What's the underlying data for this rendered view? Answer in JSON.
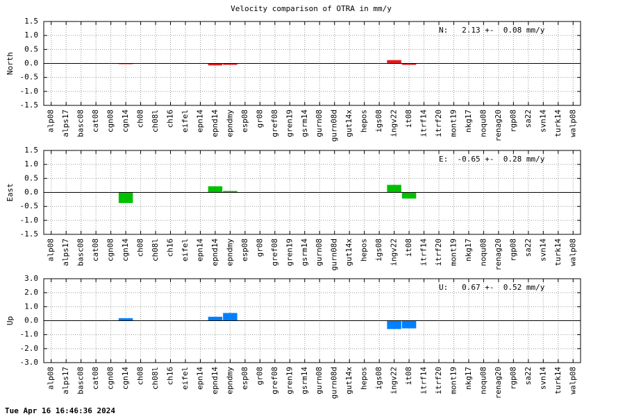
{
  "title": "Velocity comparison of OTRA in mm/y",
  "timestamp": "Tue Apr 16 16:46:36 2024",
  "chart_data": [
    {
      "type": "bar",
      "ylabel": "North",
      "annotation": "N:   2.13 +-  0.08 mm/y",
      "color": "#e02020",
      "categories": [
        "alp08",
        "alps17",
        "basc08",
        "cat08",
        "cgn08",
        "cgn14",
        "ch08",
        "ch08l",
        "ch16",
        "eifel",
        "epn14",
        "epnd14",
        "epndmy",
        "esp08",
        "gr08",
        "gref08",
        "gren19",
        "gsrm14",
        "gurn08",
        "gurn08d",
        "gut14x",
        "hepos",
        "igs08",
        "ingv22",
        "it08",
        "itrf14",
        "itrf20",
        "mont19",
        "nkg17",
        "noqu08",
        "renag20",
        "rgp08",
        "sa22",
        "svn14",
        "turk14",
        "walp08"
      ],
      "values": [
        null,
        null,
        null,
        null,
        null,
        -0.02,
        null,
        null,
        null,
        null,
        null,
        -0.07,
        -0.05,
        null,
        null,
        null,
        null,
        null,
        null,
        null,
        null,
        null,
        null,
        0.12,
        -0.05,
        null,
        null,
        null,
        null,
        null,
        null,
        null,
        null,
        null,
        null,
        null
      ],
      "ylim": [
        -1.5,
        1.5
      ],
      "yticks": [
        -1.5,
        {
          "value": -1,
          "label": "-1.0"
        },
        -0.5,
        {
          "value": 0,
          "label": "0.0"
        },
        0.5,
        {
          "value": 1,
          "label": "1.0"
        },
        1.5
      ],
      "grid": true
    },
    {
      "type": "bar",
      "ylabel": "East",
      "annotation": "E:  -0.65 +-  0.28 mm/y",
      "color": "#00c000",
      "categories": [
        "alp08",
        "alps17",
        "basc08",
        "cat08",
        "cgn08",
        "cgn14",
        "ch08",
        "ch08l",
        "ch16",
        "eifel",
        "epn14",
        "epnd14",
        "epndmy",
        "esp08",
        "gr08",
        "gref08",
        "gren19",
        "gsrm14",
        "gurn08",
        "gurn08d",
        "gut14x",
        "hepos",
        "igs08",
        "ingv22",
        "it08",
        "itrf14",
        "itrf20",
        "mont19",
        "nkg17",
        "noqu08",
        "renag20",
        "rgp08",
        "sa22",
        "svn14",
        "turk14",
        "walp08"
      ],
      "values": [
        null,
        null,
        null,
        null,
        null,
        -0.38,
        null,
        null,
        null,
        null,
        null,
        0.22,
        0.05,
        null,
        null,
        null,
        null,
        null,
        null,
        null,
        null,
        null,
        null,
        0.27,
        -0.22,
        null,
        null,
        null,
        null,
        null,
        null,
        null,
        null,
        null,
        null,
        null
      ],
      "ylim": [
        -1.5,
        1.5
      ],
      "yticks": [
        -1.5,
        {
          "value": -1,
          "label": "-1.0"
        },
        -0.5,
        {
          "value": 0,
          "label": "0.0"
        },
        0.5,
        {
          "value": 1,
          "label": "1.0"
        },
        1.5
      ],
      "grid": true
    },
    {
      "type": "bar",
      "ylabel": "Up",
      "annotation": "U:   0.67 +-  0.52 mm/y",
      "color": "#0080ff",
      "categories": [
        "alp08",
        "alps17",
        "basc08",
        "cat08",
        "cgn08",
        "cgn14",
        "ch08",
        "ch08l",
        "ch16",
        "eifel",
        "epn14",
        "epnd14",
        "epndmy",
        "esp08",
        "gr08",
        "gref08",
        "gren19",
        "gsrm14",
        "gurn08",
        "gurn08d",
        "gut14x",
        "hepos",
        "igs08",
        "ingv22",
        "it08",
        "itrf14",
        "itrf20",
        "mont19",
        "nkg17",
        "noqu08",
        "renag20",
        "rgp08",
        "sa22",
        "svn14",
        "turk14",
        "walp08"
      ],
      "values": [
        null,
        null,
        null,
        null,
        null,
        0.18,
        null,
        null,
        null,
        null,
        null,
        0.28,
        0.55,
        null,
        null,
        null,
        null,
        null,
        null,
        null,
        null,
        null,
        null,
        -0.6,
        -0.55,
        null,
        null,
        null,
        null,
        null,
        null,
        null,
        null,
        null,
        null,
        null
      ],
      "ylim": [
        -3,
        3
      ],
      "yticks": [
        {
          "value": -3,
          "label": "-3.0"
        },
        {
          "value": -2,
          "label": "-2.0"
        },
        {
          "value": -1,
          "label": "-1.0"
        },
        {
          "value": 0,
          "label": "0.0"
        },
        {
          "value": 1,
          "label": "1.0"
        },
        {
          "value": 2,
          "label": "2.0"
        },
        {
          "value": 3,
          "label": "3.0"
        }
      ],
      "grid": true
    }
  ]
}
